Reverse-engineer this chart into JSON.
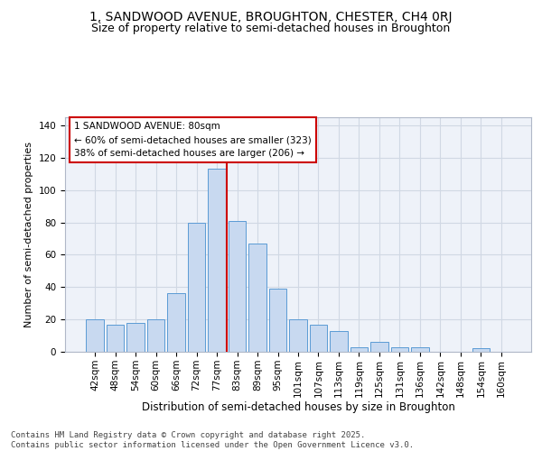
{
  "title1": "1, SANDWOOD AVENUE, BROUGHTON, CHESTER, CH4 0RJ",
  "title2": "Size of property relative to semi-detached houses in Broughton",
  "xlabel": "Distribution of semi-detached houses by size in Broughton",
  "ylabel": "Number of semi-detached properties",
  "categories": [
    "42sqm",
    "48sqm",
    "54sqm",
    "60sqm",
    "66sqm",
    "72sqm",
    "77sqm",
    "83sqm",
    "89sqm",
    "95sqm",
    "101sqm",
    "107sqm",
    "113sqm",
    "119sqm",
    "125sqm",
    "131sqm",
    "136sqm",
    "142sqm",
    "148sqm",
    "154sqm",
    "160sqm"
  ],
  "values": [
    20,
    17,
    18,
    20,
    36,
    80,
    113,
    81,
    67,
    39,
    20,
    17,
    13,
    3,
    6,
    3,
    3,
    0,
    0,
    2,
    0
  ],
  "bar_color": "#c8d9f0",
  "bar_edge_color": "#5b9bd5",
  "grid_color": "#d0d8e4",
  "bg_color": "#eef2f9",
  "annotation_text": "1 SANDWOOD AVENUE: 80sqm\n← 60% of semi-detached houses are smaller (323)\n38% of semi-detached houses are larger (206) →",
  "annotation_box_color": "#ffffff",
  "annotation_box_edge": "#cc0000",
  "vline_x": 6.5,
  "vline_color": "#cc0000",
  "ylim": [
    0,
    145
  ],
  "yticks": [
    0,
    20,
    40,
    60,
    80,
    100,
    120,
    140
  ],
  "footer": "Contains HM Land Registry data © Crown copyright and database right 2025.\nContains public sector information licensed under the Open Government Licence v3.0.",
  "title1_fontsize": 10,
  "title2_fontsize": 9,
  "xlabel_fontsize": 8.5,
  "ylabel_fontsize": 8,
  "tick_fontsize": 7.5,
  "footer_fontsize": 6.5
}
